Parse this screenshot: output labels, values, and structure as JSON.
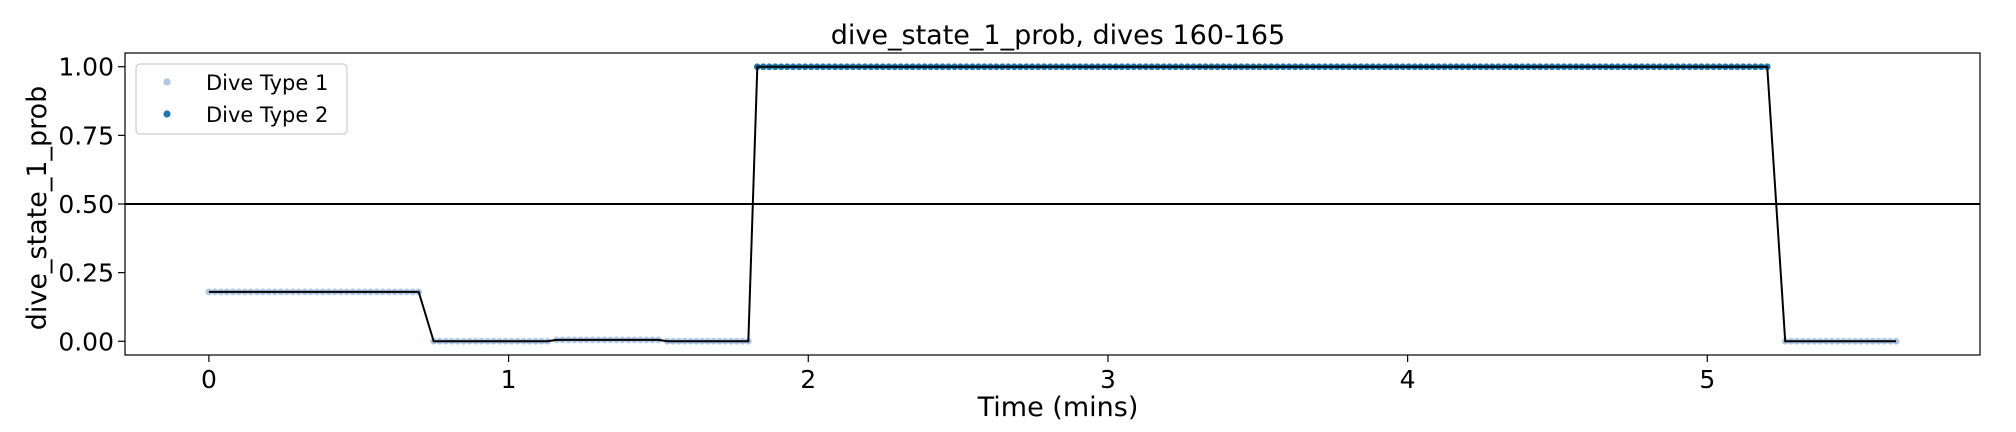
{
  "chart_data": {
    "type": "line",
    "title": "dive_state_1_prob, dives 160-165",
    "xlabel": "Time (mins)",
    "ylabel": "dive_state_1_prob",
    "xlim": [
      -0.28,
      5.91
    ],
    "ylim": [
      -0.05,
      1.05
    ],
    "xticks": [
      "0",
      "1",
      "2",
      "3",
      "4",
      "5"
    ],
    "xtick_values": [
      0,
      1,
      2,
      3,
      4,
      5
    ],
    "yticks": [
      "0.00",
      "0.25",
      "0.50",
      "0.75",
      "1.00"
    ],
    "ytick_values": [
      0.0,
      0.25,
      0.5,
      0.75,
      1.0
    ],
    "grid": false,
    "legend_position": "top-left",
    "reference_line": {
      "y": 0.5,
      "color": "#000000"
    },
    "line_color": "#000000",
    "series": [
      {
        "name": "Dive Type 1",
        "color": "#aec7e8",
        "segments": [
          {
            "x_start": 0.0,
            "x_end": 0.7,
            "y": 0.18
          },
          {
            "x_start": 0.75,
            "x_end": 1.13,
            "y": 0.0
          },
          {
            "x_start": 1.16,
            "x_end": 1.5,
            "y": 0.005
          },
          {
            "x_start": 1.53,
            "x_end": 1.8,
            "y": 0.0
          },
          {
            "x_start": 5.26,
            "x_end": 5.63,
            "y": 0.0
          }
        ]
      },
      {
        "name": "Dive Type 2",
        "color": "#1f77b4",
        "segments": [
          {
            "x_start": 1.83,
            "x_end": 5.2,
            "y": 1.0
          }
        ]
      }
    ],
    "line": {
      "x": [
        0.0,
        0.7,
        0.75,
        1.13,
        1.16,
        1.5,
        1.53,
        1.8,
        1.83,
        5.2,
        5.26,
        5.63
      ],
      "y": [
        0.18,
        0.18,
        0.0,
        0.0,
        0.005,
        0.005,
        0.0,
        0.0,
        1.0,
        1.0,
        0.0,
        0.0
      ]
    }
  }
}
